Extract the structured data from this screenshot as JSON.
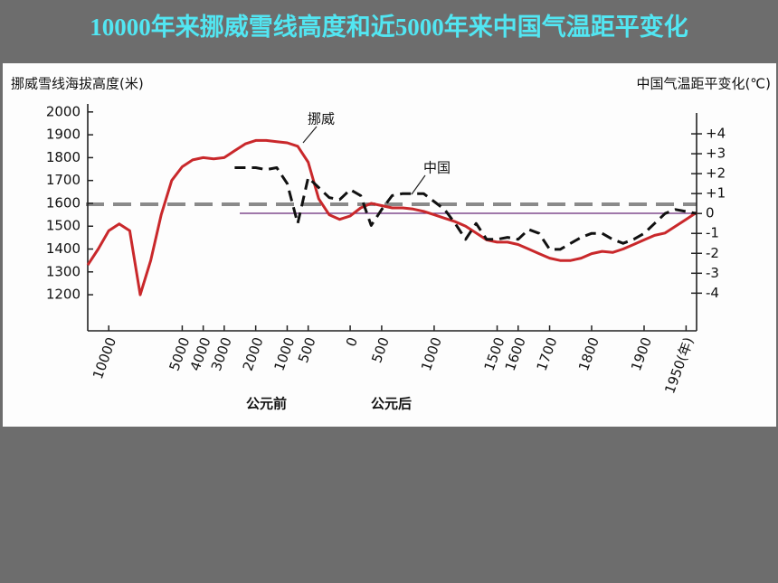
{
  "chart_data": {
    "type": "line",
    "title": "10000年来挪威雪线高度和近5000年来中国气温距平变化",
    "y_label": "挪威雪线海拔高度(米)",
    "y2_label": "中国气温距平变化(℃)",
    "annotations": [
      "公元前",
      "公元后"
    ],
    "categories": [
      null,
      null,
      "10000",
      null,
      null,
      null,
      null,
      null,
      null,
      "5000",
      null,
      "4000",
      null,
      "3000",
      null,
      null,
      "2000",
      null,
      null,
      "1000",
      null,
      "500",
      null,
      null,
      null,
      "0",
      null,
      null,
      "500",
      null,
      null,
      null,
      null,
      "1000",
      null,
      null,
      null,
      null,
      null,
      "1500",
      null,
      "1600",
      null,
      null,
      "1700",
      null,
      null,
      null,
      "1800",
      null,
      null,
      null,
      null,
      "1900",
      null,
      null,
      null,
      "1950(年)",
      null
    ],
    "ylim": [
      1050,
      2035
    ],
    "yticks": [
      1200,
      1300,
      1400,
      1500,
      1600,
      1700,
      1800,
      1900,
      2000
    ],
    "y2lim": [
      -5.8,
      5.5
    ],
    "y2ticks": [
      {
        "value": 4,
        "label": "+4"
      },
      {
        "value": 3,
        "label": "+3"
      },
      {
        "value": 2,
        "label": "+2"
      },
      {
        "value": 1,
        "label": "+1"
      },
      0,
      -1,
      -2,
      -3,
      -4
    ],
    "series": [
      {
        "name": "挪威",
        "color": "#c9282b",
        "axis": "y",
        "values": [
          1330,
          1400,
          1480,
          1510,
          1480,
          1200,
          1350,
          1550,
          1700,
          1760,
          1790,
          1800,
          1795,
          1800,
          1830,
          1860,
          1875,
          1875,
          1870,
          1865,
          1850,
          1780,
          1620,
          1550,
          1530,
          1545,
          1580,
          1600,
          1590,
          1580,
          1580,
          1575,
          1565,
          1550,
          1535,
          1520,
          1500,
          1470,
          1440,
          1430,
          1430,
          1420,
          1400,
          1380,
          1360,
          1350,
          1350,
          1360,
          1380,
          1390,
          1385,
          1400,
          1420,
          1440,
          1460,
          1470,
          1500,
          1530,
          1560
        ]
      },
      {
        "name": "中国",
        "color": "#111111",
        "axis": "y2",
        "dashed": true,
        "values": [
          null,
          null,
          null,
          null,
          null,
          null,
          null,
          null,
          null,
          null,
          null,
          null,
          null,
          null,
          2.3,
          2.3,
          2.3,
          2.2,
          2.3,
          1.5,
          -0.5,
          1.8,
          1.3,
          0.8,
          0.7,
          1.2,
          0.9,
          -0.6,
          0.2,
          0.9,
          1.0,
          1.0,
          1.0,
          0.6,
          0.2,
          -0.5,
          -1.3,
          -0.5,
          -1.3,
          -1.3,
          -1.2,
          -1.3,
          -0.8,
          -1.0,
          -1.8,
          -1.8,
          -1.5,
          -1.2,
          -1.0,
          -1.0,
          -1.3,
          -1.5,
          -1.3,
          -1.0,
          -0.5,
          0.0,
          0.2,
          0.1,
          0.0
        ]
      }
    ]
  }
}
